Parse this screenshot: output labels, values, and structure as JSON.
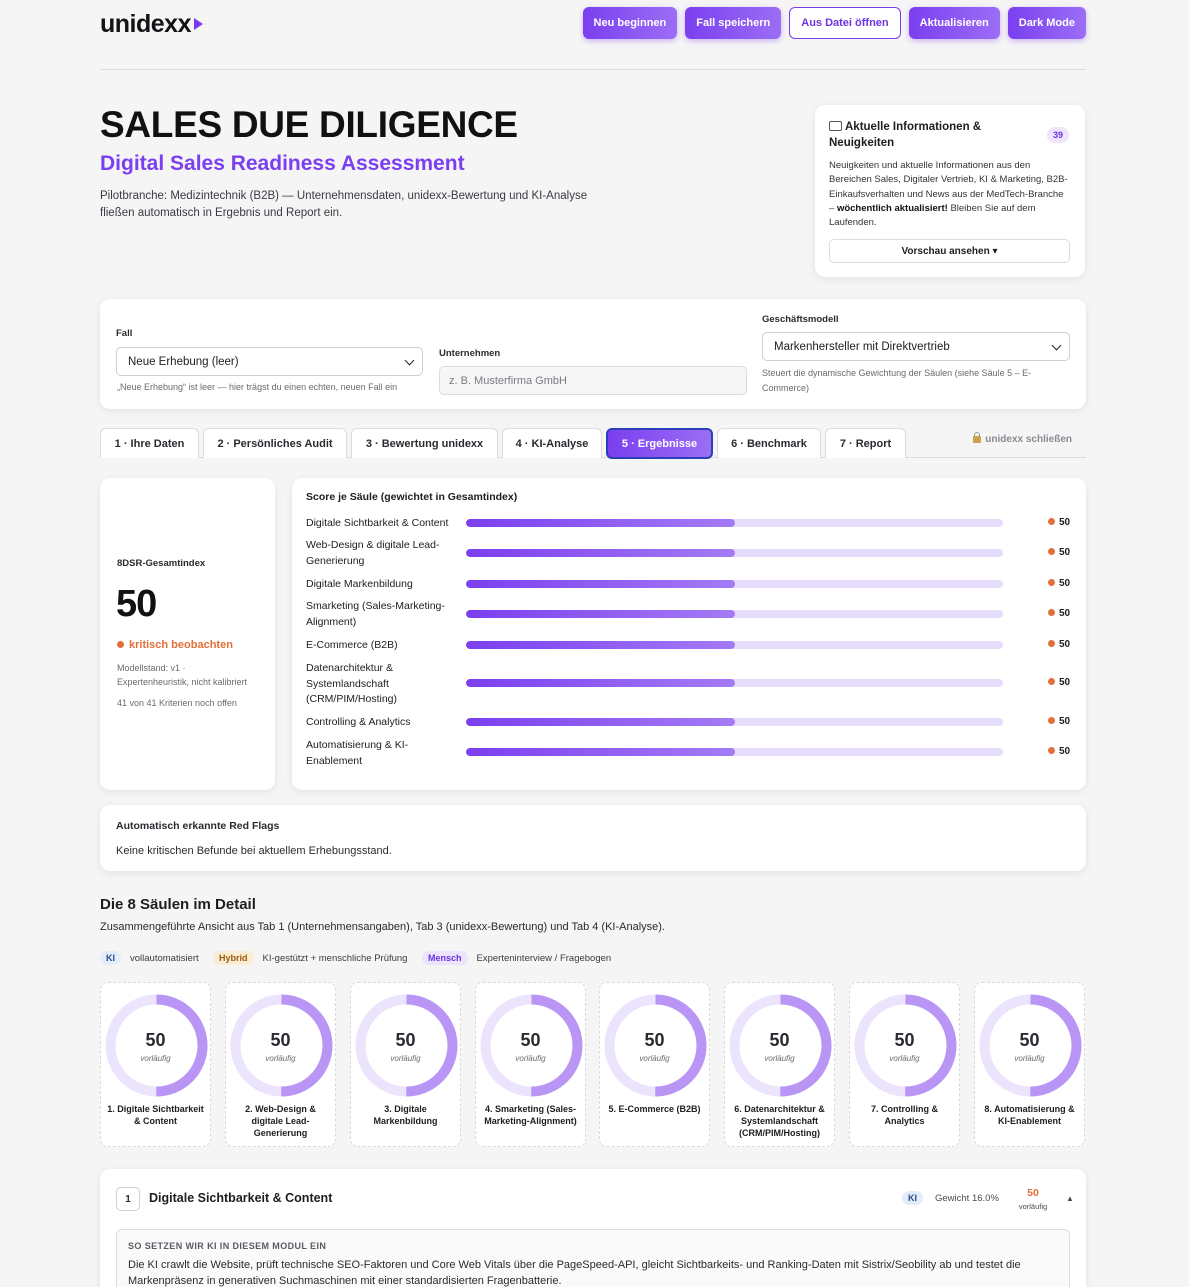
{
  "header": {
    "logo": "unidexx",
    "buttons": [
      {
        "label": "Neu beginnen"
      },
      {
        "label": "Fall speichern"
      },
      {
        "label": "Aus Datei öffnen"
      },
      {
        "label": "Aktualisieren"
      },
      {
        "label": "Dark Mode"
      }
    ]
  },
  "hero": {
    "title": "SALES DUE DILIGENCE",
    "subtitle": "Digital Sales Readiness Assessment",
    "intro": "Pilotbranche: Medizintechnik (B2B) — Unternehmensdaten, unidexx-Bewertung und KI-Analyse fließen automatisch in Ergebnis und Report ein."
  },
  "news": {
    "title": "Aktuelle Informationen & Neuigkeiten",
    "badge": "39",
    "text_before": "Neuigkeiten und aktuelle Informationen aus den Bereichen Sales, Digitaler Vertrieb, KI & Marketing, B2B-Einkaufsverhalten und News aus der MedTech-Branche – ",
    "text_bold": "wöchentlich aktualisiert!",
    "text_after": " Bleiben Sie auf dem Laufenden.",
    "button": "Vorschau ansehen ▾"
  },
  "form": {
    "fall_label": "Fall",
    "fall_value": "Neue Erhebung (leer)",
    "fall_hint": "„Neue Erhebung“ ist leer — hier trägst du einen echten, neuen Fall ein",
    "company_label": "Unternehmen",
    "company_placeholder": "z. B. Musterfirma GmbH",
    "model_label": "Geschäftsmodell",
    "model_value": "Markenhersteller mit Direktvertrieb",
    "model_hint": "Steuert die dynamische Gewichtung der Säulen (siehe Säule 5 – E-Commerce)"
  },
  "tabs": {
    "items": [
      {
        "label": "1 · Ihre Daten"
      },
      {
        "label": "2 · Persönliches Audit"
      },
      {
        "label": "3 · Bewertung unidexx"
      },
      {
        "label": "4 · KI-Analyse"
      },
      {
        "label": "5 · Ergebnisse"
      },
      {
        "label": "6 · Benchmark"
      },
      {
        "label": "7 · Report"
      }
    ],
    "active_index": 4,
    "lock_label": "unidexx schließen"
  },
  "score": {
    "label": "8DSR-Gesamtindex",
    "value": "50",
    "status": "kritisch beobachten",
    "model": "Modellstand: v1 · Expertenheuristik, nicht kalibriert",
    "open": "41 von 41 Kriterien noch offen"
  },
  "chart_data": {
    "type": "bar",
    "title": "Score je Säule (gewichtet in Gesamtindex)",
    "categories": [
      "Digitale Sichtbarkeit & Content",
      "Web-Design & digitale Lead-Generierung",
      "Digitale Markenbildung",
      "Smarketing (Sales-Marketing-Alignment)",
      "E-Commerce (B2B)",
      "Datenarchitektur & Systemlandschaft (CRM/PIM/Hosting)",
      "Controlling & Analytics",
      "Automatisierung & KI-Enablement"
    ],
    "values": [
      50,
      50,
      50,
      50,
      50,
      50,
      50,
      50
    ],
    "xlim": [
      0,
      100
    ],
    "colors": {
      "fill": "#7b3ff0",
      "track": "#e5ddfb",
      "status": "#e0703a"
    }
  },
  "red_flags": {
    "title": "Automatisch erkannte Red Flags",
    "text": "Keine kritischen Befunde bei aktuellem Erhebungsstand."
  },
  "pillars": {
    "title": "Die 8 Säulen im Detail",
    "subtitle": "Zusammengeführte Ansicht aus Tab 1 (Unternehmensangaben), Tab 3 (unidexx-Bewertung) und Tab 4 (KI-Analyse).",
    "legend": [
      {
        "chip": "KI",
        "text": "vollautomatisiert"
      },
      {
        "chip": "Hybrid",
        "text": "KI-gestützt + menschliche Prüfung"
      },
      {
        "chip": "Mensch",
        "text": "Experteninterview / Fragebogen"
      }
    ],
    "provisional_label": "vorläufig",
    "items": [
      {
        "score": "50",
        "name": "1. Digitale Sichtbarkeit & Content"
      },
      {
        "score": "50",
        "name": "2. Web-Design & digitale Lead-Generierung"
      },
      {
        "score": "50",
        "name": "3. Digitale Markenbildung"
      },
      {
        "score": "50",
        "name": "4. Smarketing (Sales-Marketing-Alignment)"
      },
      {
        "score": "50",
        "name": "5. E-Commerce (B2B)"
      },
      {
        "score": "50",
        "name": "6. Datenarchitektur & Systemlandschaft (CRM/PIM/Hosting)"
      },
      {
        "score": "50",
        "name": "7. Controlling & Analytics"
      },
      {
        "score": "50",
        "name": "8. Automatisierung & KI-Enablement"
      }
    ]
  },
  "module": {
    "num": "1",
    "title": "Digitale Sichtbarkeit & Content",
    "chip": "KI",
    "weight": "Gewicht 16.0%",
    "score": "50",
    "provisional": "vorläufig",
    "caret": "▲",
    "how_title": "SO SETZEN WIR KI IN DIESEM MODUL EIN",
    "how_text": "Die KI crawlt die Website, prüft technische SEO-Faktoren und Core Web Vitals über die PageSpeed-API, gleicht Sichtbarkeits- und Ranking-Daten mit Sistrix/Seobility ab und testet die Markenpräsenz in generativen Suchmaschinen mit einer standardisierten Fragenbatterie."
  }
}
